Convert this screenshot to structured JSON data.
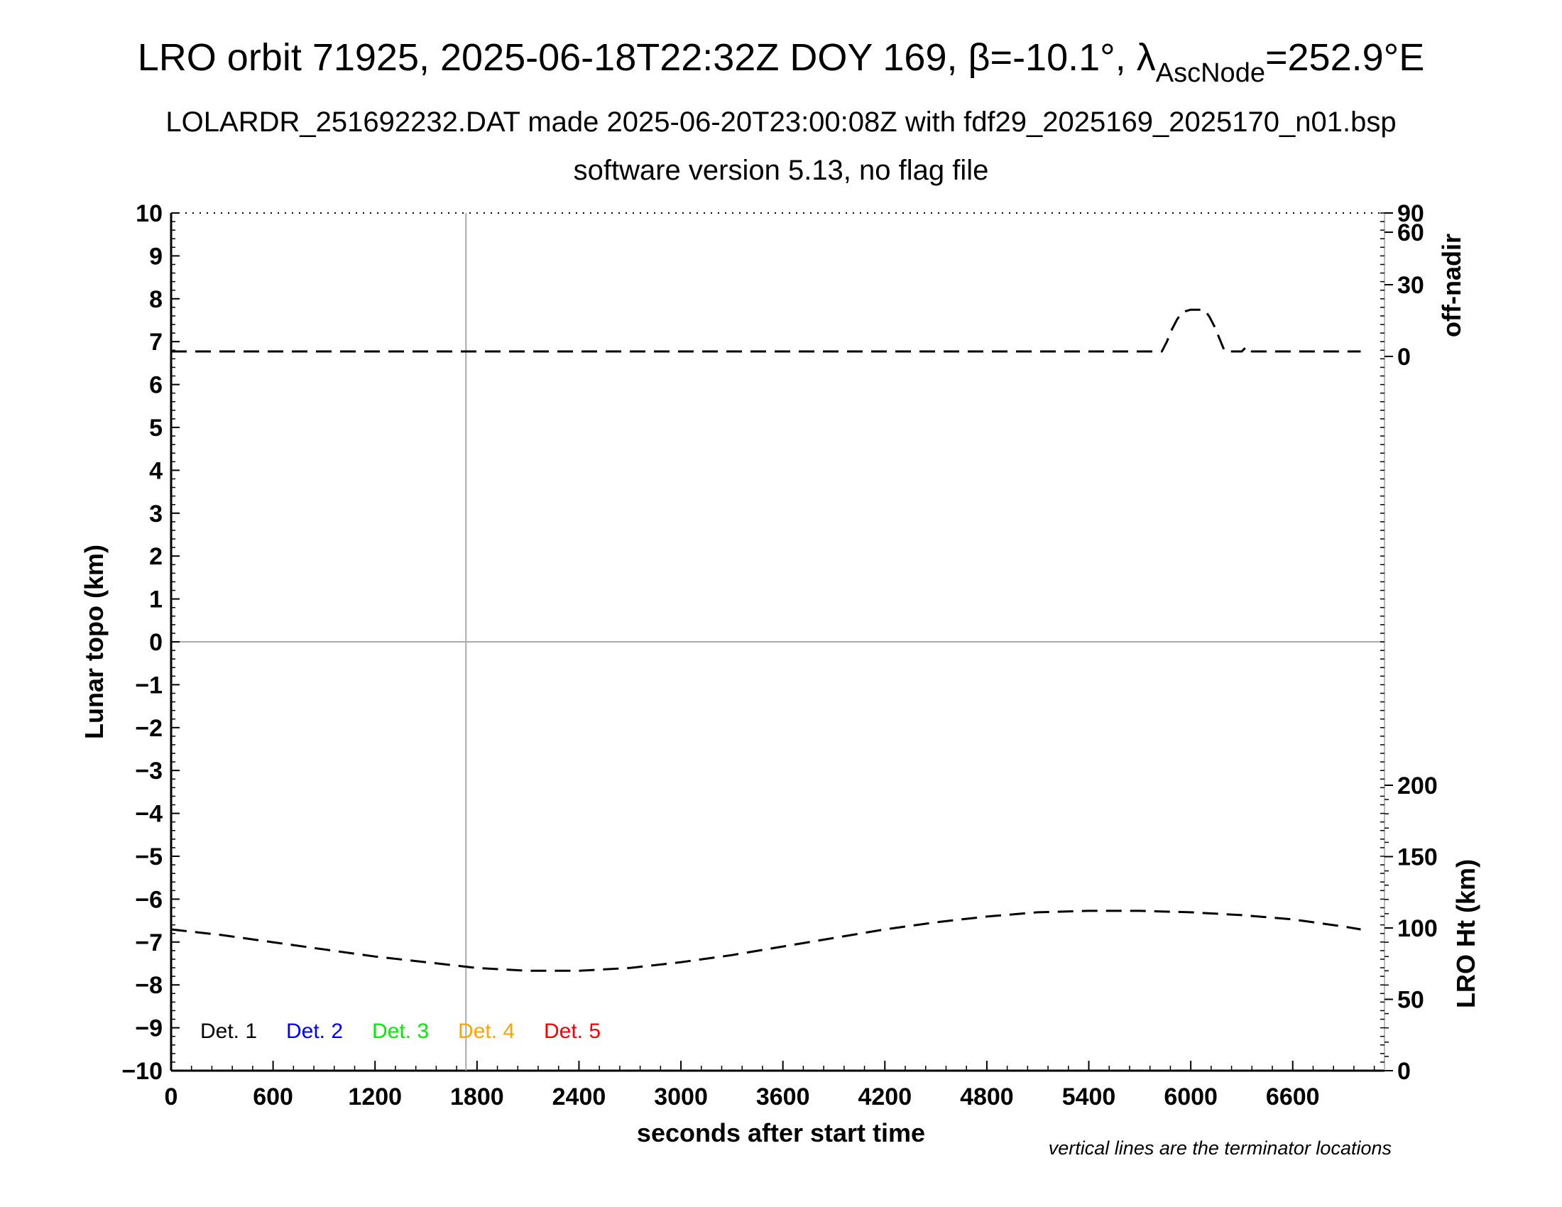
{
  "title": {
    "prefix": "LRO orbit 71925, 2025-06-18T22:32Z DOY 169, β=-10.1°, λ",
    "subscript": "AscNode",
    "suffix": "=252.9°E"
  },
  "subtitle1": "LOLARDR_251692232.DAT made 2025-06-20T23:00:08Z with fdf29_2025169_2025170_n01.bsp",
  "subtitle2": "software version 5.13, no flag file",
  "note": "vertical lines are the terminator locations",
  "chart_data": {
    "type": "line",
    "xlabel": "seconds after start time",
    "ylabel_left": "Lunar topo (km)",
    "ylabel_right_top": "off-nadir",
    "ylabel_right_bottom": "LRO Ht (km)",
    "xlim": [
      0,
      7140
    ],
    "ylim_left": [
      -10,
      10
    ],
    "x_ticks": [
      "0",
      "600",
      "1200",
      "1800",
      "2400",
      "3000",
      "3600",
      "4200",
      "4800",
      "5400",
      "6000",
      "6600"
    ],
    "x_tick_values": [
      0,
      600,
      1200,
      1800,
      2400,
      3000,
      3600,
      4200,
      4800,
      5400,
      6000,
      6600
    ],
    "y_ticks_left": [
      "10",
      "9",
      "8",
      "7",
      "6",
      "5",
      "4",
      "3",
      "2",
      "1",
      "0",
      "−1",
      "−2",
      "−3",
      "−4",
      "−5",
      "−6",
      "−7",
      "−8",
      "−9",
      "−10"
    ],
    "y_tick_values_left": [
      10,
      9,
      8,
      7,
      6,
      5,
      4,
      3,
      2,
      1,
      0,
      -1,
      -2,
      -3,
      -4,
      -5,
      -6,
      -7,
      -8,
      -9,
      -10
    ],
    "right_top_axis": {
      "ticks": [
        "90",
        "60",
        "30",
        "0"
      ],
      "tick_values": [
        90,
        60,
        30,
        0
      ]
    },
    "right_bottom_axis": {
      "ticks": [
        "200",
        "150",
        "100",
        "50",
        "0"
      ],
      "tick_values": [
        200,
        150,
        100,
        50,
        0
      ]
    },
    "terminator_lines_x": [
      1735
    ],
    "legend": [
      "Det. 1",
      "Det. 2",
      "Det. 3",
      "Det. 4",
      "Det. 5"
    ],
    "legend_colors": [
      "#000000",
      "#0000ff",
      "#00ee00",
      "#ffa500",
      "#ff0000"
    ],
    "legend_placement": "bottom-left",
    "grid": false,
    "series": [
      {
        "name": "off-nadir",
        "axis": "right_top",
        "unit": "degrees",
        "color": "#000000",
        "style": "dashed",
        "x": [
          0,
          1000,
          2000,
          3000,
          4000,
          5000,
          5800,
          5830,
          5860,
          5890,
          5920,
          5950,
          6000,
          6050,
          6080,
          6110,
          6140,
          6170,
          6200,
          6250,
          6300,
          6330,
          6360,
          6400,
          6600,
          7000
        ],
        "y": [
          2,
          2,
          2,
          2,
          2,
          2,
          2,
          2,
          6,
          11,
          15,
          18,
          19,
          19,
          19,
          16,
          12,
          7,
          2,
          2,
          2,
          4,
          2,
          2,
          2,
          2
        ]
      },
      {
        "name": "LRO Ht",
        "axis": "right_bottom",
        "unit": "km",
        "color": "#000000",
        "style": "dashed",
        "x": [
          0,
          300,
          600,
          900,
          1200,
          1500,
          1800,
          2100,
          2400,
          2700,
          3000,
          3300,
          3600,
          3900,
          4200,
          4500,
          4800,
          5100,
          5400,
          5700,
          6000,
          6300,
          6600,
          6900,
          7000
        ],
        "y": [
          99,
          95,
          90,
          85,
          80,
          76,
          72,
          70,
          70,
          72,
          76,
          81,
          87,
          93,
          99,
          104,
          108,
          111,
          112,
          112,
          111,
          109,
          106,
          101,
          99
        ]
      }
    ]
  }
}
